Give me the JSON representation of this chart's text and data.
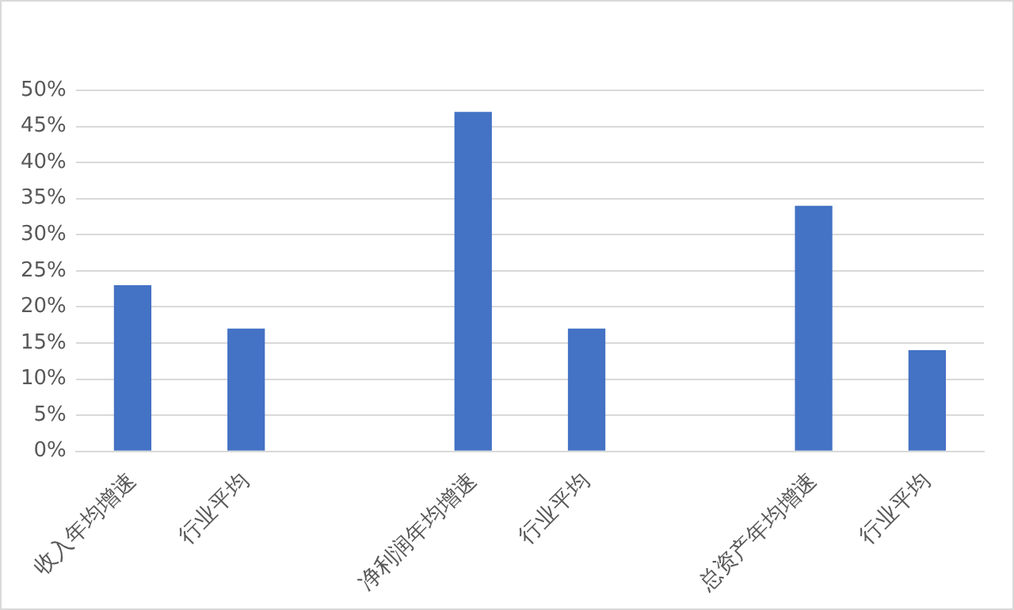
{
  "chart_data": {
    "type": "bar",
    "categories": [
      "收入年均增速",
      "行业平均",
      null,
      "净利润年均增速",
      "行业平均",
      null,
      "总资产年均增速",
      "行业平均"
    ],
    "values": [
      23,
      17,
      null,
      47,
      17,
      null,
      34,
      14
    ],
    "color": "#4472c4",
    "ylim": [
      0,
      50
    ],
    "yticks": [
      {
        "value": 0,
        "label": "0%"
      },
      {
        "value": 5,
        "label": "5%"
      },
      {
        "value": 10,
        "label": "10%"
      },
      {
        "value": 15,
        "label": "15%"
      },
      {
        "value": 20,
        "label": "20%"
      },
      {
        "value": 25,
        "label": "25%"
      },
      {
        "value": 30,
        "label": "30%"
      },
      {
        "value": 35,
        "label": "35%"
      },
      {
        "value": 40,
        "label": "40%"
      },
      {
        "value": 45,
        "label": "45%"
      },
      {
        "value": 50,
        "label": "50%"
      }
    ],
    "grid": "y"
  }
}
